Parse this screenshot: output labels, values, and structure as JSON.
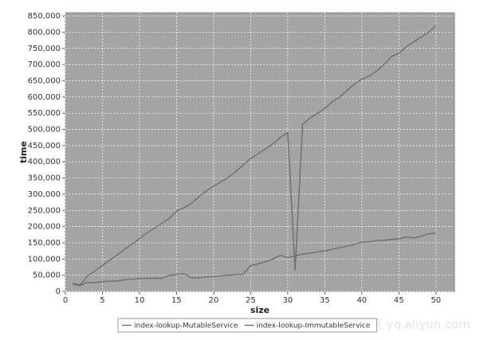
{
  "chart_data": {
    "type": "line",
    "x_label": "size",
    "y_label": "time",
    "watermark": "云栖社区 yq.aliyun.com",
    "x": [
      1,
      2,
      3,
      4,
      5,
      6,
      7,
      8,
      9,
      10,
      11,
      12,
      13,
      14,
      15,
      16,
      17,
      18,
      19,
      20,
      21,
      22,
      23,
      24,
      25,
      26,
      27,
      28,
      29,
      30,
      31,
      32,
      33,
      34,
      35,
      36,
      37,
      38,
      39,
      40,
      41,
      42,
      43,
      44,
      45,
      46,
      47,
      48,
      49,
      50
    ],
    "series": [
      {
        "name": "index-lookup-MutableService",
        "color": "#6e6e6e",
        "values": [
          25000,
          20000,
          48000,
          63000,
          80000,
          97000,
          113000,
          130000,
          146000,
          163000,
          180000,
          195000,
          210000,
          225000,
          248000,
          258000,
          272000,
          292000,
          310000,
          325000,
          338000,
          352000,
          370000,
          390000,
          410000,
          425000,
          440000,
          455000,
          475000,
          490000,
          65000,
          515000,
          535000,
          550000,
          565000,
          585000,
          600000,
          620000,
          640000,
          655000,
          665000,
          680000,
          700000,
          725000,
          735000,
          755000,
          770000,
          785000,
          800000,
          820000
        ]
      },
      {
        "name": "index-lookup-ImmutableService",
        "color": "#6e6e6e",
        "values": [
          22000,
          18000,
          28000,
          27000,
          30000,
          32000,
          32000,
          36000,
          38000,
          40000,
          40000,
          41000,
          40000,
          50000,
          52000,
          55000,
          42000,
          42000,
          45000,
          46000,
          48000,
          50000,
          52000,
          53000,
          80000,
          85000,
          92000,
          100000,
          112000,
          104000,
          110000,
          115000,
          118000,
          122000,
          125000,
          130000,
          135000,
          140000,
          145000,
          152000,
          153000,
          157000,
          158000,
          160000,
          162000,
          168000,
          165000,
          170000,
          178000,
          180000
        ]
      }
    ],
    "xlim": [
      0,
      52.5
    ],
    "xticks": [
      0,
      5,
      10,
      15,
      20,
      25,
      30,
      35,
      40,
      45,
      50
    ],
    "ylim": [
      0,
      860000
    ],
    "yticks": [
      0,
      {
        "value": 50000,
        "label": "50,000"
      },
      {
        "value": 100000,
        "label": "100,000"
      },
      {
        "value": 150000,
        "label": "150,000"
      },
      {
        "value": 200000,
        "label": "200,000"
      },
      {
        "value": 250000,
        "label": "250,000"
      },
      {
        "value": 300000,
        "label": "300,000"
      },
      {
        "value": 350000,
        "label": "350,000"
      },
      {
        "value": 400000,
        "label": "400,000"
      },
      {
        "value": 450000,
        "label": "450,000"
      },
      {
        "value": 500000,
        "label": "500,000"
      },
      {
        "value": 550000,
        "label": "550,000"
      },
      {
        "value": 600000,
        "label": "600,000"
      },
      {
        "value": 650000,
        "label": "650,000"
      },
      {
        "value": 700000,
        "label": "700,000"
      },
      {
        "value": 750000,
        "label": "750,000"
      },
      {
        "value": 800000,
        "label": "800,000"
      },
      {
        "value": 850000,
        "label": "850,000"
      }
    ],
    "grid": true,
    "legend": "bottom"
  }
}
